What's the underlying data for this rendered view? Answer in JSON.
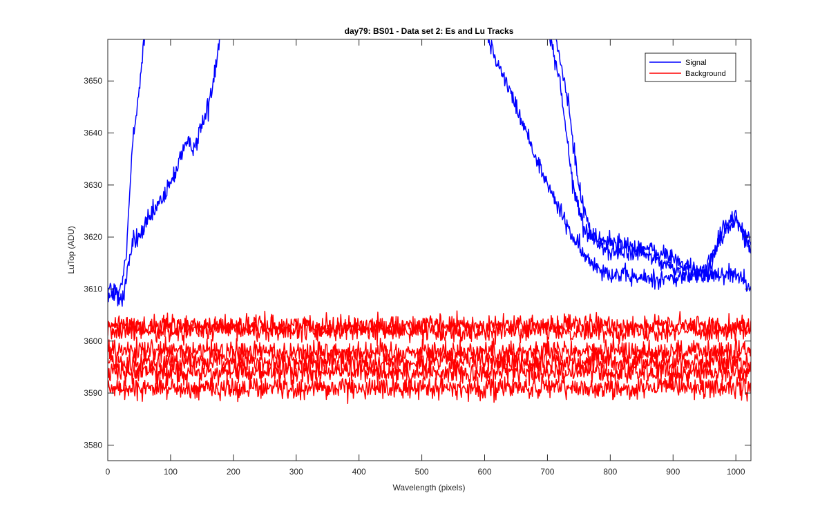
{
  "chart_data": {
    "type": "line",
    "title": "day79: BS01 - Data set 2: Es and Lu Tracks",
    "xlabel": "Wavelength (pixels)",
    "ylabel": "LuTop (ADU)",
    "xlim": [
      0,
      1024
    ],
    "ylim": [
      3577,
      3658
    ],
    "xticks": [
      0,
      100,
      200,
      300,
      400,
      500,
      600,
      700,
      800,
      900,
      1000
    ],
    "yticks": [
      3580,
      3590,
      3600,
      3610,
      3620,
      3630,
      3640,
      3650
    ],
    "grid": false,
    "legend_position": "top-right",
    "legend": [
      {
        "label": "Signal",
        "color": "#0000ff"
      },
      {
        "label": "Background",
        "color": "#ff0000"
      }
    ],
    "series": [
      {
        "group": "Signal",
        "color": "#0000ff",
        "noise": 1.5,
        "points": [
          [
            0,
            3610
          ],
          [
            20,
            3609
          ],
          [
            30,
            3617
          ],
          [
            40,
            3640
          ],
          [
            50,
            3648
          ],
          [
            60,
            3660
          ],
          [
            70,
            3662
          ]
        ]
      },
      {
        "group": "Signal",
        "color": "#0000ff",
        "noise": 1.5,
        "points": [
          [
            0,
            3609
          ],
          [
            25,
            3608
          ],
          [
            30,
            3613
          ],
          [
            40,
            3619
          ],
          [
            50,
            3620
          ],
          [
            70,
            3624
          ],
          [
            100,
            3630
          ],
          [
            120,
            3637
          ],
          [
            140,
            3638
          ],
          [
            160,
            3645
          ],
          [
            170,
            3652
          ],
          [
            180,
            3660
          ]
        ]
      },
      {
        "group": "Signal",
        "color": "#0000ff",
        "noise": 1.3,
        "points": [
          [
            600,
            3660
          ],
          [
            650,
            3645
          ],
          [
            700,
            3630
          ],
          [
            720,
            3625
          ],
          [
            740,
            3620
          ],
          [
            760,
            3616
          ],
          [
            800,
            3613
          ],
          [
            850,
            3612
          ],
          [
            900,
            3612
          ],
          [
            950,
            3613
          ],
          [
            1000,
            3613
          ],
          [
            1024,
            3611
          ]
        ]
      },
      {
        "group": "Signal",
        "color": "#0000ff",
        "noise": 1.3,
        "points": [
          [
            700,
            3660
          ],
          [
            720,
            3650
          ],
          [
            740,
            3630
          ],
          [
            760,
            3621
          ],
          [
            800,
            3619
          ],
          [
            850,
            3618
          ],
          [
            900,
            3616
          ],
          [
            940,
            3613
          ],
          [
            960,
            3614
          ],
          [
            980,
            3622
          ],
          [
            1000,
            3624
          ],
          [
            1024,
            3617
          ]
        ]
      },
      {
        "group": "Signal",
        "color": "#0000ff",
        "noise": 1.3,
        "points": [
          [
            710,
            3660
          ],
          [
            730,
            3648
          ],
          [
            750,
            3630
          ],
          [
            770,
            3620
          ],
          [
            800,
            3617
          ],
          [
            850,
            3617
          ],
          [
            900,
            3614
          ],
          [
            950,
            3613
          ],
          [
            980,
            3621
          ],
          [
            1000,
            3623
          ],
          [
            1024,
            3619
          ]
        ]
      },
      {
        "group": "Background",
        "color": "#ff0000",
        "noise": 1.4,
        "points": [
          [
            0,
            3603
          ],
          [
            1024,
            3603
          ]
        ]
      },
      {
        "group": "Background",
        "color": "#ff0000",
        "noise": 1.4,
        "points": [
          [
            0,
            3602
          ],
          [
            1024,
            3602
          ]
        ]
      },
      {
        "group": "Background",
        "color": "#ff0000",
        "noise": 1.5,
        "points": [
          [
            0,
            3598
          ],
          [
            1024,
            3598
          ]
        ]
      },
      {
        "group": "Background",
        "color": "#ff0000",
        "noise": 1.5,
        "points": [
          [
            0,
            3596
          ],
          [
            1024,
            3596
          ]
        ]
      },
      {
        "group": "Background",
        "color": "#ff0000",
        "noise": 1.5,
        "points": [
          [
            0,
            3594
          ],
          [
            1024,
            3594
          ]
        ]
      },
      {
        "group": "Background",
        "color": "#ff0000",
        "noise": 1.5,
        "points": [
          [
            0,
            3591
          ],
          [
            1024,
            3591
          ]
        ]
      }
    ]
  }
}
